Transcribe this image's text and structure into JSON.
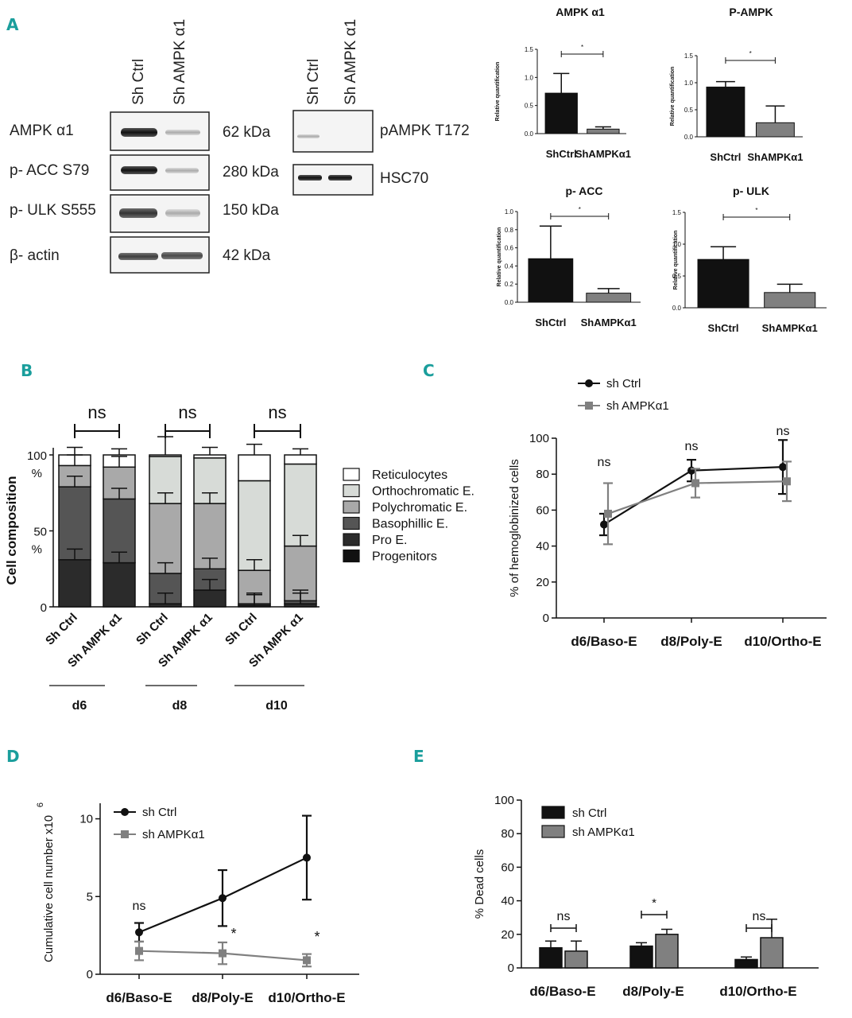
{
  "panel_labels": {
    "A": "A",
    "B": "B",
    "C": "C",
    "D": "D",
    "E": "E"
  },
  "blot": {
    "lanes_left": [
      "Sh Ctrl",
      "Sh AMPK α1"
    ],
    "lanes_right": [
      "Sh Ctrl",
      "Sh AMPK α1"
    ],
    "rows": [
      {
        "label": "AMPK α1",
        "kda": "62 kDa"
      },
      {
        "label": "p- ACC S79",
        "kda": "280 kDa"
      },
      {
        "label": "p- ULK S555",
        "kda": "150 kDa"
      },
      {
        "label": "β- actin",
        "kda": "42 kDa"
      }
    ],
    "right_rows": [
      "pAMPK T172",
      "HSC70"
    ]
  },
  "chart_data": [
    {
      "id": "A1",
      "type": "bar",
      "title": "AMPK α1",
      "ylabel": "Relative quantification",
      "categories": [
        "ShCtrl",
        "ShAMPKα1"
      ],
      "values": [
        0.72,
        0.08
      ],
      "errors": [
        0.35,
        0.04
      ],
      "ylim": [
        0,
        1.5
      ],
      "yticks": [
        "0.0",
        "0.5",
        "1.0",
        "1.5"
      ],
      "yticks_v": [
        0,
        0.5,
        1.0,
        1.5
      ],
      "sig": "*"
    },
    {
      "id": "A2",
      "type": "bar",
      "title": "P-AMPK",
      "ylabel": "Relative quantification",
      "categories": [
        "ShCtrl",
        "ShAMPKα1"
      ],
      "values": [
        0.92,
        0.26
      ],
      "errors": [
        0.1,
        0.31
      ],
      "ylim": [
        0,
        1.5
      ],
      "yticks": [
        "0.0",
        "0.5",
        "1.0",
        "1.5"
      ],
      "yticks_v": [
        0,
        0.5,
        1.0,
        1.5
      ],
      "sig": "*"
    },
    {
      "id": "A3",
      "type": "bar",
      "title": "p- ACC",
      "ylabel": "Relative quantification",
      "categories": [
        "ShCtrl",
        "ShAMPKα1"
      ],
      "values": [
        0.48,
        0.1
      ],
      "errors": [
        0.36,
        0.05
      ],
      "ylim": [
        0,
        1.0
      ],
      "yticks": [
        "0.0",
        "0.2",
        "0.4",
        "0.6",
        "0.8",
        "1.0"
      ],
      "yticks_v": [
        0,
        0.2,
        0.4,
        0.6,
        0.8,
        1.0
      ],
      "sig": "*"
    },
    {
      "id": "A4",
      "type": "bar",
      "title": "p- ULK",
      "ylabel": "Relative quantification",
      "categories": [
        "ShCtrl",
        "ShAMPKα1"
      ],
      "values": [
        0.76,
        0.24
      ],
      "errors": [
        0.2,
        0.13
      ],
      "ylim": [
        0,
        1.5
      ],
      "yticks": [
        "0.0",
        "0.5",
        "1.0",
        "1.5"
      ],
      "yticks_v": [
        0,
        0.5,
        1.0,
        1.5
      ],
      "sig": "*"
    },
    {
      "id": "B",
      "type": "bar",
      "stacked": true,
      "ylabel": "Cell composition",
      "yticks": [
        "0",
        "50\n%",
        "100\n%"
      ],
      "categories": [
        "Sh Ctrl",
        "Sh AMPK α1",
        "Sh Ctrl",
        "Sh AMPK α1",
        "Sh Ctrl",
        "Sh AMPK α1"
      ],
      "groups": [
        "d6",
        "d8",
        "d10"
      ],
      "series": [
        {
          "name": "Progenitors",
          "color": "#111111",
          "values": [
            0,
            0,
            0,
            0,
            0,
            0
          ]
        },
        {
          "name": "Pro E.",
          "color": "#2b2b2b",
          "values": [
            31,
            29,
            2,
            11,
            1,
            2
          ]
        },
        {
          "name": "Basophillic E.",
          "color": "#555555",
          "values": [
            48,
            42,
            20,
            14,
            1,
            2
          ]
        },
        {
          "name": "Polychromatic E.",
          "color": "#a9a9a9",
          "values": [
            14,
            21,
            46,
            43,
            22,
            36
          ]
        },
        {
          "name": "Orthochromatic E.",
          "color": "#d7dbd7",
          "values": [
            0,
            0,
            31,
            30,
            59,
            54
          ]
        },
        {
          "name": "Reticulocytes",
          "color": "#ffffff",
          "values": [
            7,
            8,
            1,
            2,
            17,
            6
          ]
        }
      ],
      "errors_top": [
        5,
        4,
        12,
        5,
        7,
        4
      ],
      "sig": [
        "ns",
        "ns",
        "ns"
      ]
    },
    {
      "id": "C",
      "type": "line",
      "ylabel": "% of hemoglobinized cells",
      "categories": [
        "d6/Baso-E",
        "d8/Poly-E",
        "d10/Ortho-E"
      ],
      "ylim": [
        0,
        100
      ],
      "yticks": [
        "0",
        "20",
        "40",
        "60",
        "80",
        "100"
      ],
      "yticks_v": [
        0,
        20,
        40,
        60,
        80,
        100
      ],
      "series": [
        {
          "name": "sh Ctrl",
          "color": "#111111",
          "values": [
            52,
            82,
            84
          ],
          "errors": [
            6,
            6,
            15
          ]
        },
        {
          "name": "sh AMPKα1",
          "color": "#808080",
          "values": [
            58,
            75,
            76
          ],
          "errors": [
            17,
            8,
            11
          ]
        }
      ],
      "sig": [
        "ns",
        "ns",
        "ns"
      ]
    },
    {
      "id": "D",
      "type": "line",
      "ylabel": "Cumulative cell number x10",
      "ylabel_sup": "6",
      "categories": [
        "d6/Baso-E",
        "d8/Poly-E",
        "d10/Ortho-E"
      ],
      "ylim": [
        0,
        11
      ],
      "yticks": [
        "0",
        "5",
        "10"
      ],
      "yticks_v": [
        0,
        5,
        10
      ],
      "series": [
        {
          "name": "sh Ctrl",
          "color": "#111111",
          "values": [
            2.7,
            4.9,
            7.5
          ],
          "errors": [
            0.6,
            1.8,
            2.7
          ]
        },
        {
          "name": "sh AMPKα1",
          "color": "#808080",
          "values": [
            1.5,
            1.35,
            0.9
          ],
          "errors": [
            0.6,
            0.7,
            0.4
          ]
        }
      ],
      "sig": [
        "ns",
        "*",
        "*"
      ]
    },
    {
      "id": "E",
      "type": "bar",
      "ylabel": "% Dead cells",
      "categories": [
        "d6/Baso-E",
        "d8/Poly-E",
        "d10/Ortho-E"
      ],
      "ylim": [
        0,
        100
      ],
      "yticks": [
        "0",
        "20",
        "40",
        "60",
        "80",
        "100"
      ],
      "yticks_v": [
        0,
        20,
        40,
        60,
        80,
        100
      ],
      "series": [
        {
          "name": "sh Ctrl",
          "color": "#111111",
          "values": [
            12,
            13,
            5
          ],
          "errors": [
            4,
            2,
            1.5
          ]
        },
        {
          "name": "sh AMPKα1",
          "color": "#808080",
          "values": [
            10,
            20,
            18
          ],
          "errors": [
            6,
            3,
            11
          ]
        }
      ],
      "sig": [
        "ns",
        "*",
        "ns"
      ]
    }
  ]
}
